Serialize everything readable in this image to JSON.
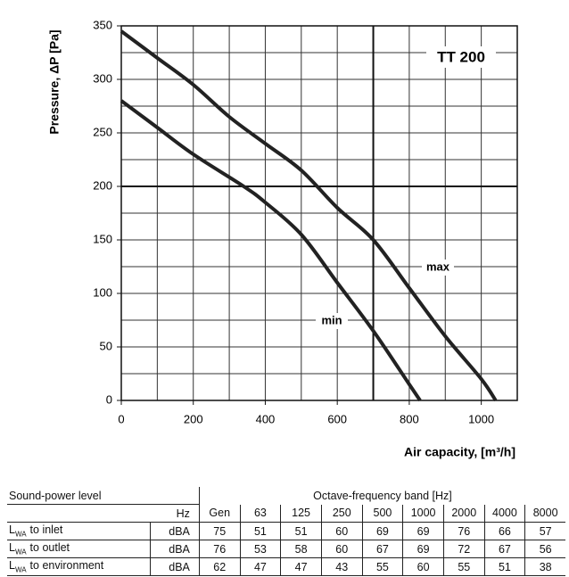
{
  "chart_data": {
    "type": "line",
    "ylabel": "Pressure, ΔP [Pa]",
    "xlabel": "Air capacity, [m³/h]",
    "model_label": "TT 200",
    "xlim": [
      0,
      1100
    ],
    "ylim": [
      0,
      350
    ],
    "xticks": [
      0,
      200,
      400,
      600,
      800,
      1000
    ],
    "yticks": [
      0,
      50,
      100,
      150,
      200,
      250,
      300,
      350
    ],
    "x_minor_grid": [
      100,
      300,
      500,
      700,
      900
    ],
    "y_minor_grid": [
      25,
      75,
      125,
      175,
      225,
      275,
      325
    ],
    "highlight_lines": {
      "x": 700,
      "y": 200
    },
    "grid": true,
    "series": [
      {
        "name": "max",
        "color": "#222222",
        "x": [
          0,
          100,
          200,
          300,
          400,
          500,
          600,
          700,
          800,
          900,
          1000,
          1040
        ],
        "values": [
          345,
          320,
          295,
          265,
          240,
          215,
          180,
          150,
          105,
          60,
          20,
          0
        ]
      },
      {
        "name": "min",
        "color": "#222222",
        "x": [
          0,
          100,
          200,
          340,
          400,
          500,
          600,
          700,
          800,
          830
        ],
        "values": [
          280,
          255,
          230,
          200,
          185,
          155,
          110,
          65,
          15,
          0
        ]
      }
    ]
  },
  "table": {
    "title": "Sound-power level",
    "band_title": "Octave-frequency band [Hz]",
    "unit_header": "Hz",
    "columns": [
      "Gen",
      "63",
      "125",
      "250",
      "500",
      "1000",
      "2000",
      "4000",
      "8000"
    ],
    "rows": [
      {
        "label": {
          "symbol": "L",
          "subscript": "WA",
          "text": "to inlet"
        },
        "unit": "dBA",
        "values": [
          75,
          51,
          51,
          60,
          69,
          69,
          76,
          66,
          57
        ]
      },
      {
        "label": {
          "symbol": "L",
          "subscript": "WA",
          "text": "to outlet"
        },
        "unit": "dBA",
        "values": [
          76,
          53,
          58,
          60,
          67,
          69,
          72,
          67,
          56
        ]
      },
      {
        "label": {
          "symbol": "L",
          "subscript": "WA",
          "text": "to environment"
        },
        "unit": "dBA",
        "values": [
          62,
          47,
          47,
          43,
          55,
          60,
          55,
          51,
          38
        ]
      }
    ]
  }
}
